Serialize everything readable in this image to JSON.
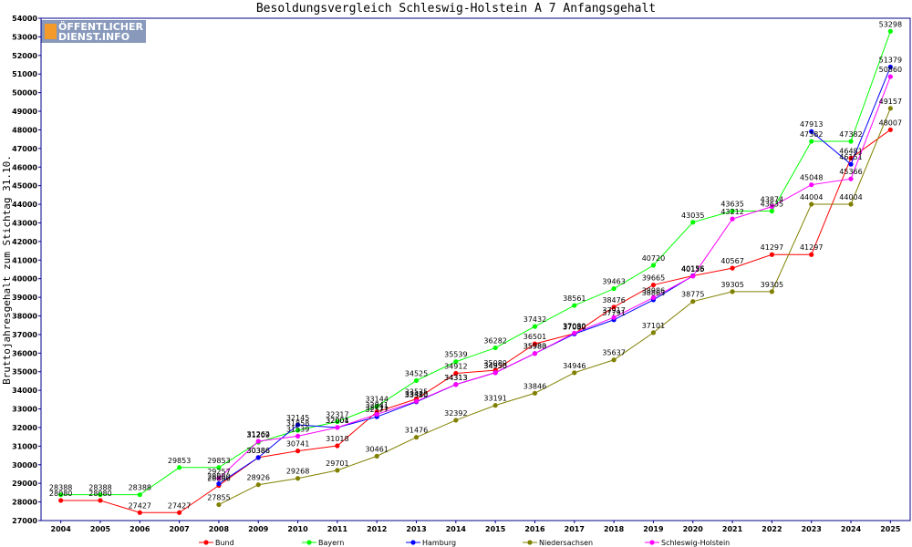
{
  "logo": {
    "line1": "ÖFFENTLICHER",
    "line2": "DIENST.INFO"
  },
  "chart_data": {
    "type": "line",
    "title": "Besoldungsvergleich Schleswig-Holstein A 7 Anfangsgehalt",
    "ylabel": "Bruttojahresgehalt zum Stichtag 31.10.",
    "xlabel": "",
    "ylim": [
      27000,
      54000
    ],
    "yticks": [
      27000,
      28000,
      29000,
      30000,
      31000,
      32000,
      33000,
      34000,
      35000,
      36000,
      37000,
      38000,
      39000,
      40000,
      41000,
      42000,
      43000,
      44000,
      45000,
      46000,
      47000,
      48000,
      49000,
      50000,
      51000,
      52000,
      53000,
      54000
    ],
    "categories": [
      "2004",
      "2005",
      "2006",
      "2007",
      "2008",
      "2009",
      "2010",
      "2011",
      "2012",
      "2013",
      "2014",
      "2015",
      "2016",
      "2017",
      "2018",
      "2019",
      "2020",
      "2021",
      "2022",
      "2023",
      "2024",
      "2025"
    ],
    "grid": false,
    "legend_position": "bottom",
    "series": [
      {
        "name": "Bund",
        "color": "#ff0000",
        "values": [
          28080,
          28080,
          27427,
          27427,
          28886,
          30386,
          30741,
          31018,
          32841,
          33535,
          34912,
          35080,
          36501,
          37050,
          38476,
          39665,
          40156,
          40567,
          41297,
          41297,
          46481,
          48007
        ]
      },
      {
        "name": "Bayern",
        "color": "#00ff00",
        "values": [
          28388,
          28388,
          28388,
          29853,
          29853,
          31209,
          31858,
          32317,
          33144,
          34525,
          35539,
          36282,
          37432,
          38561,
          39463,
          40720,
          43035,
          43635,
          43635,
          47382,
          47382,
          53298
        ]
      },
      {
        "name": "Hamburg",
        "color": "#0000ff",
        "values": [
          null,
          null,
          null,
          null,
          28980,
          30386,
          32145,
          32001,
          32577,
          33380,
          34313,
          34950,
          35983,
          37030,
          37791,
          38863,
          40156,
          null,
          null,
          47913,
          46151,
          51379
        ]
      },
      {
        "name": "Niedersachsen",
        "color": "#808000",
        "values": [
          null,
          null,
          null,
          null,
          27855,
          28926,
          29268,
          29701,
          30461,
          31476,
          32392,
          33191,
          33846,
          34946,
          35637,
          37101,
          38775,
          39305,
          39305,
          44004,
          44004,
          49157
        ]
      },
      {
        "name": "Schleswig-Holstein",
        "color": "#ff00ff",
        "values": [
          null,
          null,
          null,
          null,
          29257,
          31262,
          31539,
          32004,
          32711,
          33410,
          34313,
          34950,
          35980,
          37080,
          37917,
          38986,
          40135,
          43212,
          43874,
          45048,
          45366,
          50860
        ]
      }
    ]
  }
}
